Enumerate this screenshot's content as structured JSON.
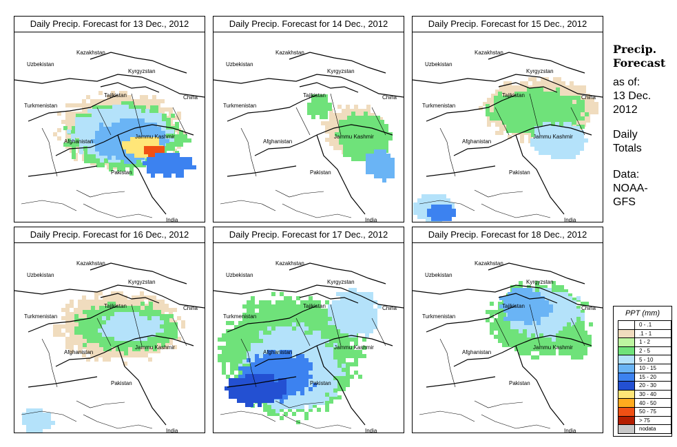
{
  "panels": [
    {
      "title": "Daily Precip. Forecast for  13 Dec., 2012"
    },
    {
      "title": "Daily Precip. Forecast for  14 Dec., 2012"
    },
    {
      "title": "Daily Precip. Forecast for  15 Dec., 2012"
    },
    {
      "title": "Daily Precip. Forecast for  16 Dec., 2012"
    },
    {
      "title": "Daily Precip. Forecast for  17 Dec., 2012"
    },
    {
      "title": "Daily Precip. Forecast for  18 Dec., 2012"
    }
  ],
  "labels": {
    "uzbekistan": "Uzbekistan",
    "kazakhstan": "Kazakhstan",
    "kyrgyzstan": "Kyrgyzstan",
    "tajikistan": "Tajikistan",
    "turkmenistan": "Turkmenistan",
    "china": "China",
    "jammu_kashmir": "Jammu Kashmir",
    "afghanistan": "Afghanistan",
    "pakistan": "Pakistan",
    "india": "India"
  },
  "side": {
    "heading1": "Precip.",
    "heading2": "Forecast",
    "asof1": "as of:",
    "asof2": "13 Dec.",
    "asof3": "2012",
    "totals1": "Daily",
    "totals2": "Totals",
    "data1": "Data:",
    "data2": "NOAA-",
    "data3": "GFS"
  },
  "legend": {
    "title": "PPT (mm)",
    "items": [
      {
        "label": "0 - .1",
        "color": "#ffffff"
      },
      {
        "label": ".1 - 1",
        "color": "#f0dcbe"
      },
      {
        "label": "1 - 2",
        "color": "#bdf5a0"
      },
      {
        "label": "2 - 5",
        "color": "#6fe27a"
      },
      {
        "label": "5 - 10",
        "color": "#b4e2fa"
      },
      {
        "label": "10 - 15",
        "color": "#6ab4f5"
      },
      {
        "label": "15 - 20",
        "color": "#3c82f0"
      },
      {
        "label": "20 - 30",
        "color": "#2350d2"
      },
      {
        "label": "30 - 40",
        "color": "#ffe678"
      },
      {
        "label": "40 - 50",
        "color": "#ffaa1e"
      },
      {
        "label": "50 - 75",
        "color": "#f05014"
      },
      {
        "label": "> 75",
        "color": "#b41e00"
      },
      {
        "label": "nodata",
        "color": "#c8c8c8"
      }
    ]
  }
}
